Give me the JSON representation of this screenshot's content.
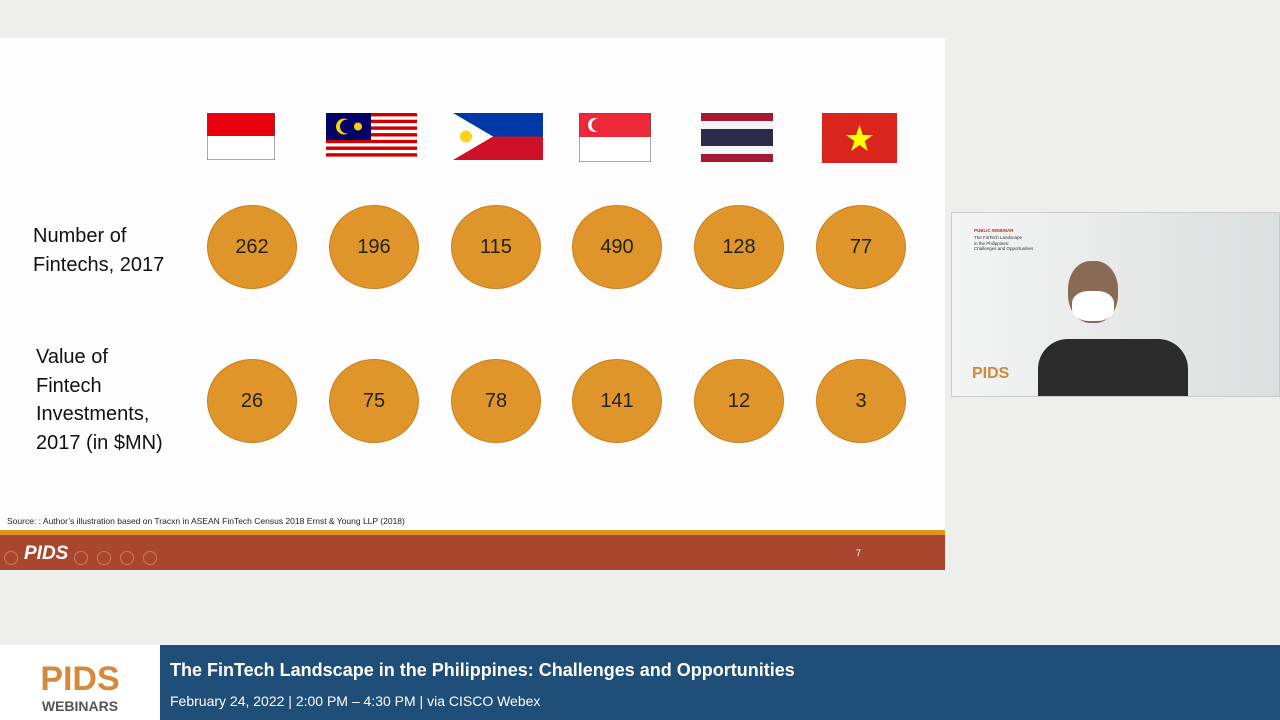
{
  "slide": {
    "rows": [
      {
        "label_lines": [
          "Number of",
          "Fintechs, 2017"
        ],
        "values": [
          262,
          196,
          115,
          490,
          128,
          77
        ]
      },
      {
        "label_lines": [
          "Value of",
          "Fintech",
          "Investments,",
          "2017 (in $MN)"
        ],
        "values": [
          26,
          75,
          78,
          141,
          12,
          3
        ]
      }
    ],
    "source": "Source: : Author’s illustration based on Tracxn in ASEAN FinTech Census 2018 Ernst & Young LLP (2018)",
    "logo": "PIDS",
    "page_number": 7
  },
  "video": {
    "tag": "PUBLIC WEBINAR",
    "title_lines": [
      "The FinTech Landscape",
      "in the Philippines:",
      "Challenges and Opportunities"
    ],
    "logo": "PIDS"
  },
  "banner": {
    "logo": "PIDS",
    "logo_sub": "WEBINARS",
    "title": "The FinTech Landscape in the Philippines: Challenges and Opportunities",
    "subtitle": "February 24, 2022 | 2:00 PM – 4:30 PM | via CISCO Webex"
  }
}
